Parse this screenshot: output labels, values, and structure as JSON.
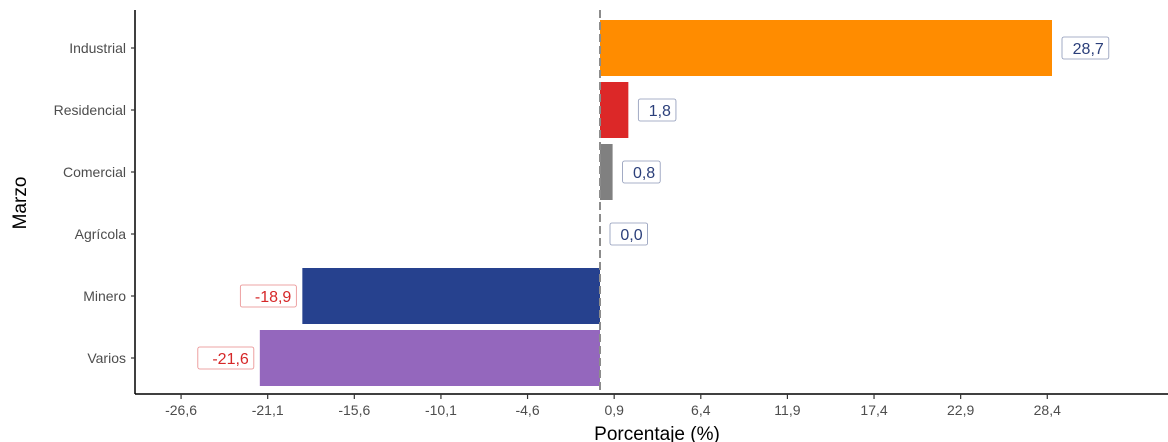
{
  "chart_data": {
    "type": "bar",
    "orientation": "horizontal",
    "xlabel": "Porcentaje (%)",
    "ylabel": "Marzo",
    "categories": [
      "Industrial",
      "Residencial",
      "Comercial",
      "Agrícola",
      "Minero",
      "Varios"
    ],
    "values": [
      28.7,
      1.8,
      0.8,
      0.0,
      -18.9,
      -21.6
    ],
    "value_labels": [
      "28,7",
      "1,8",
      "0,8",
      "0,0",
      "-18,9",
      "-21,6"
    ],
    "bar_colors": [
      "#ff8c00",
      "#dc2828",
      "#808080",
      "#808080",
      "#26418e",
      "#9467bd"
    ],
    "label_colors": [
      "#2b3f7a",
      "#2b3f7a",
      "#2b3f7a",
      "#2b3f7a",
      "#d62728",
      "#d62728"
    ],
    "xticks": [
      -26.6,
      -21.1,
      -15.6,
      -10.1,
      -4.6,
      0.9,
      6.4,
      11.9,
      17.4,
      22.9,
      28.4
    ],
    "xtick_labels": [
      "-26,6",
      "-21,1",
      "-15,6",
      "-10,1",
      "-4,6",
      "0,9",
      "6,4",
      "11,9",
      "17,4",
      "22,9",
      "28,4"
    ],
    "zero_line": "dashed gray vertical line at 0",
    "grid": false
  }
}
